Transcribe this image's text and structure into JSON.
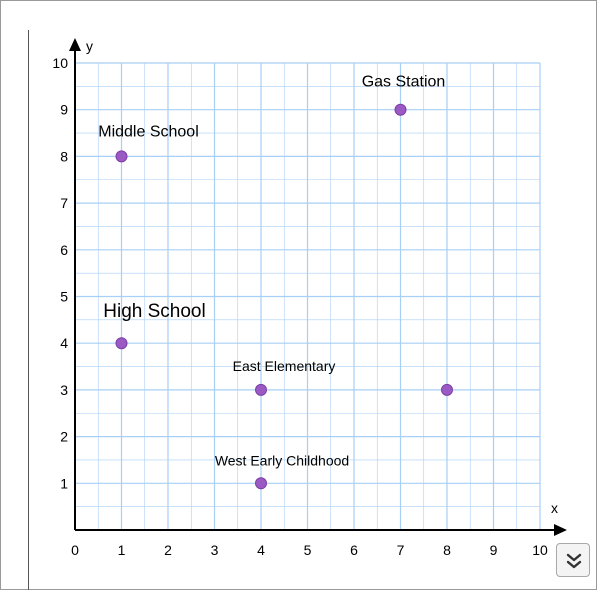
{
  "chart_data": {
    "type": "scatter",
    "title": "",
    "xlabel": "x",
    "ylabel": "y",
    "xlim": [
      0,
      10
    ],
    "ylim": [
      0,
      10
    ],
    "grid": true,
    "x_ticks": [
      "0",
      "1",
      "2",
      "3",
      "4",
      "5",
      "6",
      "7",
      "8",
      "9",
      "10"
    ],
    "y_ticks": [
      "1",
      "2",
      "3",
      "4",
      "5",
      "6",
      "7",
      "8",
      "9",
      "10"
    ],
    "points": [
      {
        "x": 7,
        "y": 9,
        "label": "Gas Station"
      },
      {
        "x": 1,
        "y": 8,
        "label": "Middle School"
      },
      {
        "x": 1,
        "y": 4,
        "label": "High School"
      },
      {
        "x": 4,
        "y": 3,
        "label": "East Elementary"
      },
      {
        "x": 8,
        "y": 3,
        "label": ""
      },
      {
        "x": 4,
        "y": 1,
        "label": "West Early Childhood"
      }
    ],
    "colors": {
      "point": "#9b59c4",
      "point_stroke": "#7a3fa6",
      "grid": "#a8cff5",
      "axis": "#000000"
    }
  },
  "controls": {
    "expand_icon": "double-chevron-down-icon"
  }
}
